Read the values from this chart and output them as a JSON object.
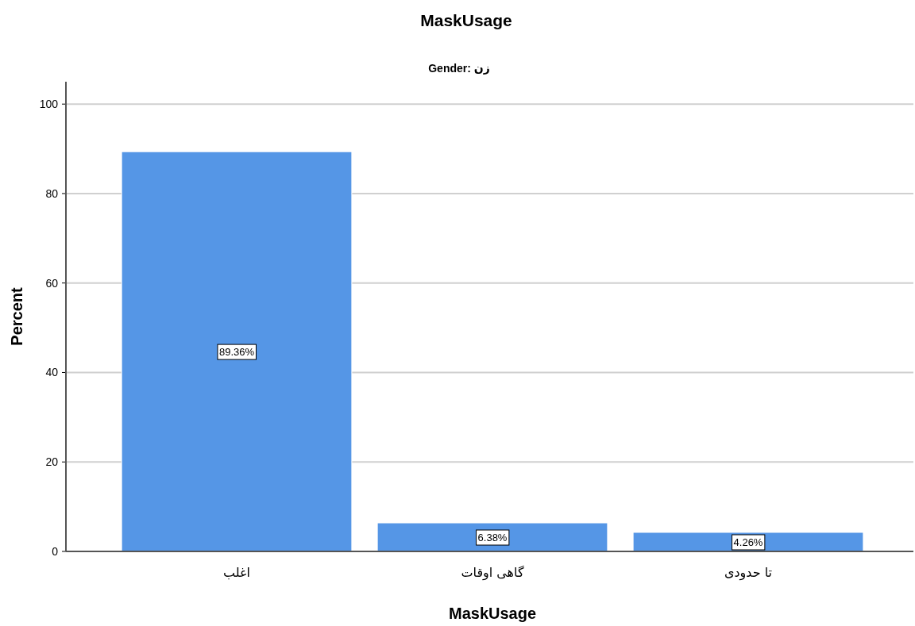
{
  "chart_data": {
    "type": "bar",
    "title": "MaskUsage",
    "subtitle": "Gender: زن",
    "xlabel": "MaskUsage",
    "ylabel": "Percent",
    "categories": [
      "اغلب",
      "گاهی اوقات",
      "تا حدودی"
    ],
    "values": [
      89.36,
      6.38,
      4.26
    ],
    "value_labels": [
      "89.36%",
      "6.38%",
      "4.26%"
    ],
    "color": "#5596e6",
    "ylim": [
      0,
      105
    ],
    "yticks": [
      0,
      20,
      40,
      60,
      80,
      100
    ],
    "grid": "y"
  }
}
